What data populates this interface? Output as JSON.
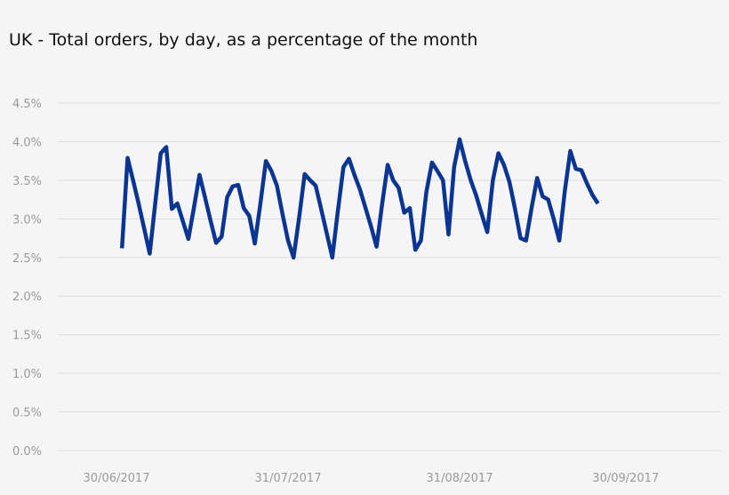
{
  "chart_data": {
    "type": "line",
    "title": "UK - Total orders, by day, as a percentage of the month",
    "xlabel": "",
    "ylabel": "",
    "ylim": [
      0,
      4.5
    ],
    "y_ticks": [
      "0.0%",
      "0.5%",
      "1.0%",
      "1.5%",
      "2.0%",
      "2.5%",
      "3.0%",
      "3.5%",
      "4.0%",
      "4.5%"
    ],
    "x_ticks": [
      {
        "label": "30/06/2017",
        "date": "2017-06-30"
      },
      {
        "label": "31/07/2017",
        "date": "2017-07-31"
      },
      {
        "label": "31/08/2017",
        "date": "2017-08-31"
      },
      {
        "label": "30/09/2017",
        "date": "2017-09-30"
      }
    ],
    "grid": true,
    "series": [
      {
        "color": "#0a3592",
        "points": [
          [
            "2017-07-01",
            2.62
          ],
          [
            "2017-07-02",
            3.79
          ],
          [
            "2017-07-03",
            3.5
          ],
          [
            "2017-07-04",
            3.2
          ],
          [
            "2017-07-05",
            2.88
          ],
          [
            "2017-07-06",
            2.55
          ],
          [
            "2017-07-07",
            3.2
          ],
          [
            "2017-07-08",
            3.85
          ],
          [
            "2017-07-09",
            3.93
          ],
          [
            "2017-07-10",
            3.13
          ],
          [
            "2017-07-11",
            3.2
          ],
          [
            "2017-07-12",
            2.97
          ],
          [
            "2017-07-13",
            2.74
          ],
          [
            "2017-07-14",
            3.15
          ],
          [
            "2017-07-15",
            3.57
          ],
          [
            "2017-07-16",
            3.28
          ],
          [
            "2017-07-17",
            2.98
          ],
          [
            "2017-07-18",
            2.69
          ],
          [
            "2017-07-19",
            2.77
          ],
          [
            "2017-07-20",
            3.28
          ],
          [
            "2017-07-21",
            3.42
          ],
          [
            "2017-07-22",
            3.44
          ],
          [
            "2017-07-23",
            3.14
          ],
          [
            "2017-07-24",
            3.04
          ],
          [
            "2017-07-25",
            2.68
          ],
          [
            "2017-07-26",
            3.2
          ],
          [
            "2017-07-27",
            3.75
          ],
          [
            "2017-07-28",
            3.62
          ],
          [
            "2017-07-29",
            3.43
          ],
          [
            "2017-07-30",
            3.06
          ],
          [
            "2017-07-31",
            2.72
          ],
          [
            "2017-08-01",
            2.5
          ],
          [
            "2017-08-02",
            3.02
          ],
          [
            "2017-08-03",
            3.58
          ],
          [
            "2017-08-04",
            3.5
          ],
          [
            "2017-08-05",
            3.43
          ],
          [
            "2017-08-06",
            3.12
          ],
          [
            "2017-08-07",
            2.81
          ],
          [
            "2017-08-08",
            2.5
          ],
          [
            "2017-08-09",
            3.1
          ],
          [
            "2017-08-10",
            3.67
          ],
          [
            "2017-08-11",
            3.78
          ],
          [
            "2017-08-12",
            3.57
          ],
          [
            "2017-08-13",
            3.38
          ],
          [
            "2017-08-14",
            3.14
          ],
          [
            "2017-08-15",
            2.9
          ],
          [
            "2017-08-16",
            2.64
          ],
          [
            "2017-08-17",
            3.19
          ],
          [
            "2017-08-18",
            3.7
          ],
          [
            "2017-08-19",
            3.5
          ],
          [
            "2017-08-20",
            3.4
          ],
          [
            "2017-08-21",
            3.08
          ],
          [
            "2017-08-22",
            3.14
          ],
          [
            "2017-08-23",
            2.6
          ],
          [
            "2017-08-24",
            2.72
          ],
          [
            "2017-08-25",
            3.35
          ],
          [
            "2017-08-26",
            3.73
          ],
          [
            "2017-08-27",
            3.62
          ],
          [
            "2017-08-28",
            3.5
          ],
          [
            "2017-08-29",
            2.8
          ],
          [
            "2017-08-30",
            3.67
          ],
          [
            "2017-08-31",
            4.03
          ],
          [
            "2017-09-01",
            3.75
          ],
          [
            "2017-09-02",
            3.5
          ],
          [
            "2017-09-03",
            3.3
          ],
          [
            "2017-09-04",
            3.06
          ],
          [
            "2017-09-05",
            2.83
          ],
          [
            "2017-09-06",
            3.5
          ],
          [
            "2017-09-07",
            3.85
          ],
          [
            "2017-09-08",
            3.7
          ],
          [
            "2017-09-09",
            3.48
          ],
          [
            "2017-09-10",
            3.13
          ],
          [
            "2017-09-11",
            2.75
          ],
          [
            "2017-09-12",
            2.72
          ],
          [
            "2017-09-13",
            3.14
          ],
          [
            "2017-09-14",
            3.53
          ],
          [
            "2017-09-15",
            3.29
          ],
          [
            "2017-09-16",
            3.25
          ],
          [
            "2017-09-17",
            3.0
          ],
          [
            "2017-09-18",
            2.72
          ],
          [
            "2017-09-19",
            3.36
          ],
          [
            "2017-09-20",
            3.88
          ],
          [
            "2017-09-21",
            3.65
          ],
          [
            "2017-09-22",
            3.63
          ],
          [
            "2017-09-23",
            3.46
          ],
          [
            "2017-09-24",
            3.31
          ],
          [
            "2017-09-25",
            3.2
          ]
        ]
      }
    ]
  }
}
